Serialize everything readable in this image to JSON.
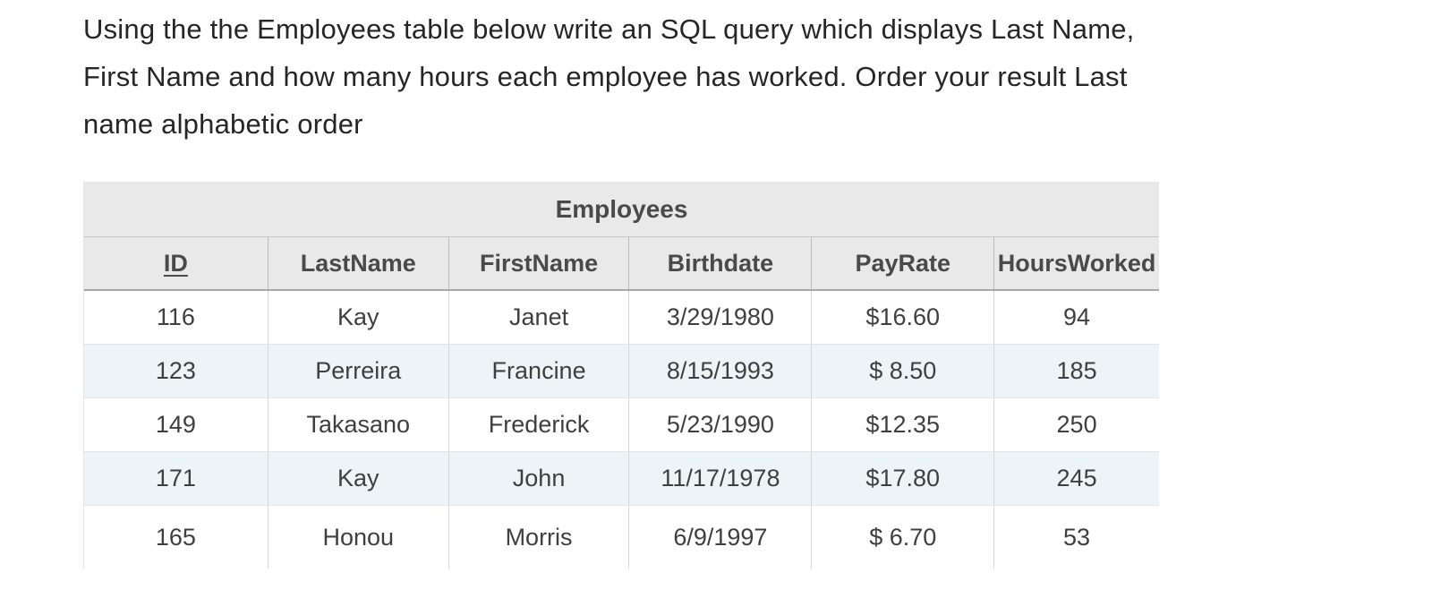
{
  "question": {
    "lines": [
      "Using the the Employees table below write an SQL query which displays Last Name,",
      "First Name and how many hours each employee has worked. Order your result Last",
      "name alphabetic order"
    ]
  },
  "table": {
    "title": "Employees",
    "columns": [
      "ID",
      "LastName",
      "FirstName",
      "Birthdate",
      "PayRate",
      "HoursWorked"
    ],
    "rows": [
      [
        "116",
        "Kay",
        "Janet",
        "3/29/1980",
        "$16.60",
        "94"
      ],
      [
        "123",
        "Perreira",
        "Francine",
        "8/15/1993",
        "$ 8.50",
        "185"
      ],
      [
        "149",
        "Takasano",
        "Frederick",
        "5/23/1990",
        "$12.35",
        "250"
      ],
      [
        "171",
        "Kay",
        "John",
        "11/17/1978",
        "$17.80",
        "245"
      ],
      [
        "165",
        "Honou",
        "Morris",
        "6/9/1997",
        "$ 6.70",
        "53"
      ]
    ],
    "colors": {
      "header_bg": "#e9e9e9",
      "stripe_bg": "#edf4f8",
      "header_text": "#4a4a4a",
      "cell_text": "#3f3f3f"
    }
  }
}
